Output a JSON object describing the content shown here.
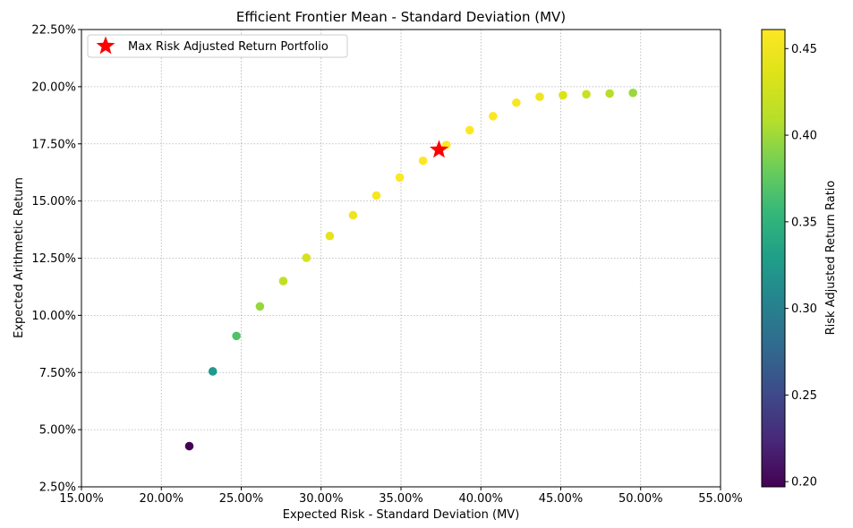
{
  "chart_data": {
    "type": "scatter",
    "title": "Efficient Frontier Mean - Standard Deviation (MV)",
    "xlabel": "Expected Risk - Standard Deviation (MV)",
    "ylabel": "Expected Arithmetic Return",
    "xlim": [
      0.15,
      0.55
    ],
    "ylim": [
      0.025,
      0.225
    ],
    "xticks": [
      0.15,
      0.2,
      0.25,
      0.3,
      0.35,
      0.4,
      0.45,
      0.5,
      0.55
    ],
    "xtick_labels": [
      "15.00%",
      "20.00%",
      "25.00%",
      "30.00%",
      "35.00%",
      "40.00%",
      "45.00%",
      "50.00%",
      "55.00%"
    ],
    "yticks": [
      0.025,
      0.05,
      0.075,
      0.1,
      0.125,
      0.15,
      0.175,
      0.2,
      0.225
    ],
    "ytick_labels": [
      "2.50%",
      "5.00%",
      "7.50%",
      "10.00%",
      "12.50%",
      "15.00%",
      "17.50%",
      "20.00%",
      "22.50%"
    ],
    "grid": true,
    "points": [
      {
        "x": 0.2175,
        "y": 0.0428,
        "ratio": 0.197
      },
      {
        "x": 0.2322,
        "y": 0.0755,
        "ratio": 0.325
      },
      {
        "x": 0.247,
        "y": 0.091,
        "ratio": 0.368
      },
      {
        "x": 0.2617,
        "y": 0.1039,
        "ratio": 0.397
      },
      {
        "x": 0.2763,
        "y": 0.115,
        "ratio": 0.416
      },
      {
        "x": 0.2908,
        "y": 0.1252,
        "ratio": 0.43
      },
      {
        "x": 0.3054,
        "y": 0.1347,
        "ratio": 0.441
      },
      {
        "x": 0.32,
        "y": 0.1438,
        "ratio": 0.449
      },
      {
        "x": 0.3346,
        "y": 0.1524,
        "ratio": 0.455
      },
      {
        "x": 0.3492,
        "y": 0.1603,
        "ratio": 0.459
      },
      {
        "x": 0.3638,
        "y": 0.1676,
        "ratio": 0.461
      },
      {
        "x": 0.3784,
        "y": 0.1745,
        "ratio": 0.461
      },
      {
        "x": 0.393,
        "y": 0.181,
        "ratio": 0.46
      },
      {
        "x": 0.4076,
        "y": 0.1871,
        "ratio": 0.459
      },
      {
        "x": 0.4222,
        "y": 0.193,
        "ratio": 0.457
      },
      {
        "x": 0.4368,
        "y": 0.1956,
        "ratio": 0.448
      },
      {
        "x": 0.4514,
        "y": 0.1963,
        "ratio": 0.435
      },
      {
        "x": 0.466,
        "y": 0.1967,
        "ratio": 0.422
      },
      {
        "x": 0.4806,
        "y": 0.197,
        "ratio": 0.41
      },
      {
        "x": 0.4952,
        "y": 0.1973,
        "ratio": 0.398
      }
    ],
    "highlight": {
      "label": "Max Risk Adjusted Return Portfolio",
      "x": 0.3738,
      "y": 0.1724,
      "color": "#ff0000",
      "marker": "star"
    },
    "legend": {
      "location": "upper-left",
      "entries": [
        "Max Risk Adjusted Return Portfolio"
      ]
    },
    "colorbar": {
      "label": "Risk Adjusted Return Ratio",
      "colormap": "viridis",
      "range": [
        0.197,
        0.461
      ],
      "ticks": [
        0.2,
        0.25,
        0.3,
        0.35,
        0.4,
        0.45
      ],
      "tick_labels": [
        "0.20",
        "0.25",
        "0.30",
        "0.35",
        "0.40",
        "0.45"
      ]
    }
  }
}
